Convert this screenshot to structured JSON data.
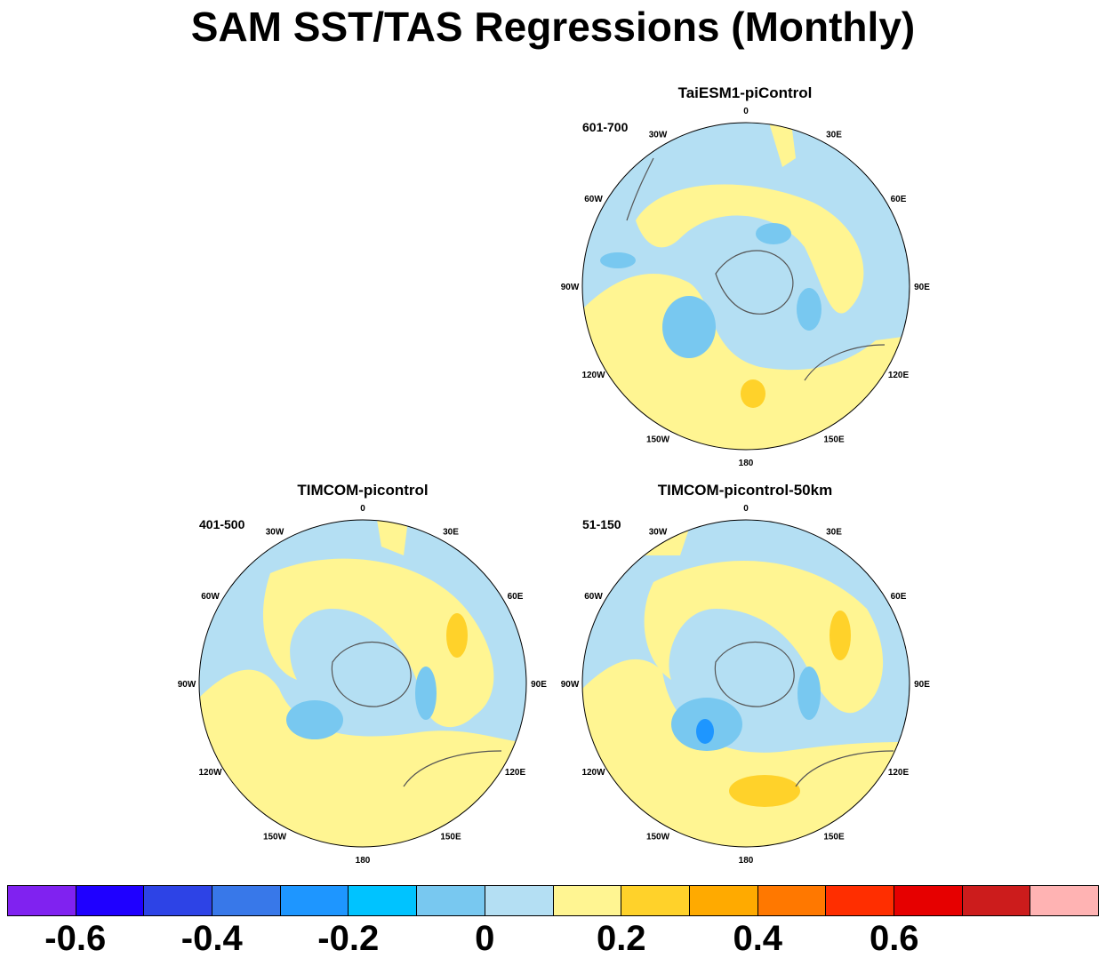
{
  "title": "SAM SST/TAS Regressions (Monthly)",
  "panels": [
    {
      "title": "TaiESM1-piControl",
      "period": "601-700"
    },
    {
      "title": "TIMCOM-picontrol",
      "period": "401-500"
    },
    {
      "title": "TIMCOM-picontrol-50km",
      "period": "51-150"
    }
  ],
  "longitude_labels": [
    "0",
    "30E",
    "60E",
    "90E",
    "120E",
    "150E",
    "180",
    "150W",
    "120W",
    "90W",
    "60W",
    "30W"
  ],
  "colorbar": {
    "colors": [
      "#8022f0",
      "#1f00ff",
      "#2d43e6",
      "#3878e9",
      "#1e96ff",
      "#00c3ff",
      "#78c8f0",
      "#b4dff3",
      "#fff592",
      "#ffd22a",
      "#ffaa00",
      "#ff7800",
      "#ff2e00",
      "#e60000",
      "#cc1c1c",
      "#ffb3b3"
    ],
    "labels": [
      "-0.6",
      "-0.4",
      "-0.2",
      "0",
      "0.2",
      "0.4",
      "0.6"
    ]
  }
}
